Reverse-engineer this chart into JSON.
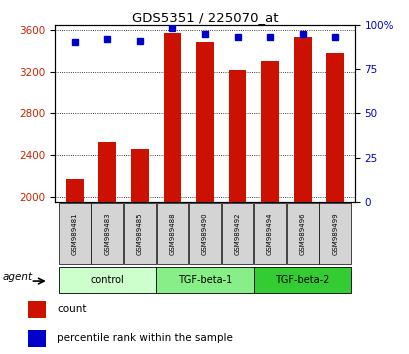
{
  "title": "GDS5351 / 225070_at",
  "samples": [
    "GSM989481",
    "GSM989483",
    "GSM989485",
    "GSM989488",
    "GSM989490",
    "GSM989492",
    "GSM989494",
    "GSM989496",
    "GSM989499"
  ],
  "counts": [
    2170,
    2520,
    2460,
    3570,
    3480,
    3220,
    3300,
    3530,
    3380
  ],
  "percentiles": [
    90,
    92,
    91,
    98,
    95,
    93,
    93,
    95,
    93
  ],
  "groups": [
    {
      "label": "control",
      "indices": [
        0,
        1,
        2
      ],
      "color": "#ccffcc"
    },
    {
      "label": "TGF-beta-1",
      "indices": [
        3,
        4,
        5
      ],
      "color": "#88ee88"
    },
    {
      "label": "TGF-beta-2",
      "indices": [
        6,
        7,
        8
      ],
      "color": "#44cc44"
    }
  ],
  "bar_color": "#cc1100",
  "dot_color": "#0000cc",
  "ylim_left": [
    1950,
    3650
  ],
  "ylim_right": [
    0,
    100
  ],
  "yticks_left": [
    2000,
    2400,
    2800,
    3200,
    3600
  ],
  "yticks_right": [
    0,
    25,
    50,
    75,
    100
  ],
  "ylabel_left_color": "#cc2200",
  "ylabel_right_color": "#0000cc",
  "agent_label": "agent",
  "legend_count_label": "count",
  "legend_pct_label": "percentile rank within the sample"
}
